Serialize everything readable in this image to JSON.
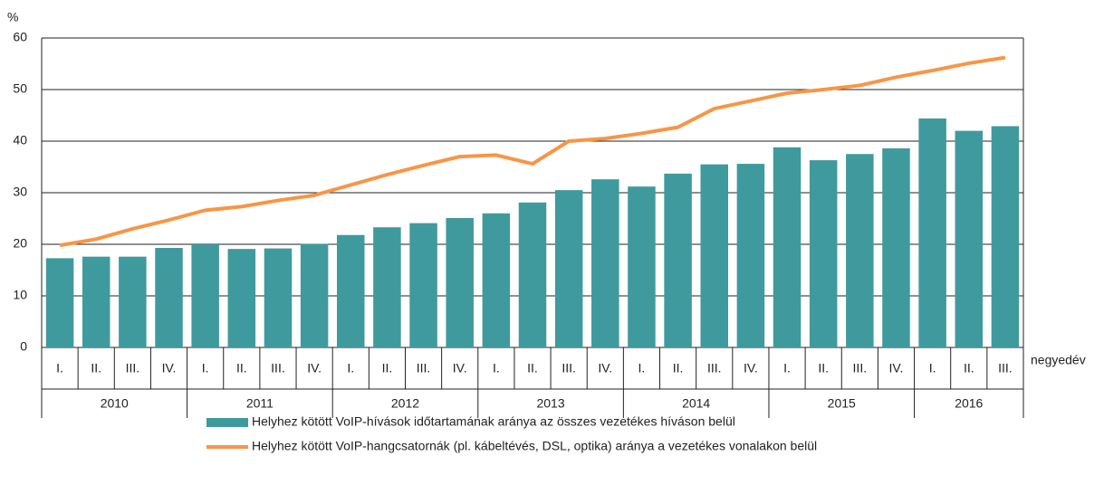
{
  "chart_data": {
    "type": "bar",
    "y_unit": "%",
    "x_label": "negyedév",
    "categories": [
      "I.",
      "II.",
      "III.",
      "IV.",
      "I.",
      "II.",
      "III.",
      "IV.",
      "I.",
      "II.",
      "III.",
      "IV.",
      "I.",
      "II.",
      "III.",
      "IV.",
      "I.",
      "II.",
      "III.",
      "IV.",
      "I.",
      "II.",
      "III.",
      "IV.",
      "I.",
      "II.",
      "III."
    ],
    "years": [
      "2010",
      "2011",
      "2012",
      "2013",
      "2014",
      "2015",
      "2016"
    ],
    "series": [
      {
        "name": "Helyhez kötött VoIP-hívások időtartamának aránya az összes vezetékes híváson belül",
        "type": "bar",
        "color": "#3f9a9e",
        "values": [
          17.3,
          17.6,
          17.6,
          19.3,
          20.0,
          19.1,
          19.2,
          20.1,
          21.8,
          23.3,
          24.1,
          25.1,
          26.0,
          28.1,
          30.5,
          32.6,
          31.2,
          33.7,
          35.5,
          35.6,
          38.8,
          36.3,
          37.5,
          38.6,
          44.4,
          42.0,
          42.9
        ]
      },
      {
        "name": "Helyhez kötött VoIP-hangcsatornák (pl. kábeltévés, DSL, optika) aránya a vezetékes vonalakon belül",
        "type": "line",
        "color": "#f79646",
        "values": [
          19.8,
          21.0,
          23.0,
          24.7,
          26.6,
          27.3,
          28.5,
          29.5,
          31.5,
          33.5,
          35.3,
          37.0,
          37.3,
          35.6,
          40.0,
          40.5,
          41.5,
          42.7,
          46.3,
          47.8,
          49.3,
          50.0,
          50.8,
          52.4,
          53.7,
          55.1,
          56.2
        ]
      }
    ],
    "ylim": [
      0,
      60
    ],
    "yticks": [
      0,
      10,
      20,
      30,
      40,
      50,
      60
    ],
    "grid": true,
    "legend": "bottom"
  }
}
